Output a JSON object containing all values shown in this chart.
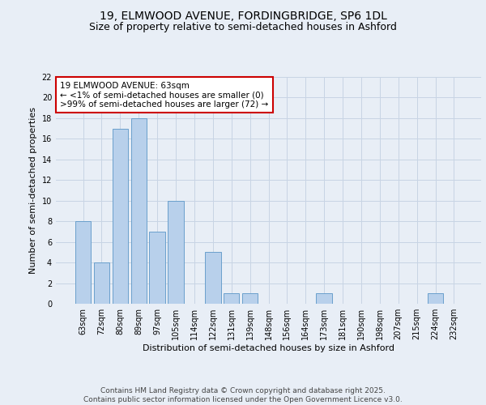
{
  "title1": "19, ELMWOOD AVENUE, FORDINGBRIDGE, SP6 1DL",
  "title2": "Size of property relative to semi-detached houses in Ashford",
  "xlabel": "Distribution of semi-detached houses by size in Ashford",
  "ylabel": "Number of semi-detached properties",
  "categories": [
    "63sqm",
    "72sqm",
    "80sqm",
    "89sqm",
    "97sqm",
    "105sqm",
    "114sqm",
    "122sqm",
    "131sqm",
    "139sqm",
    "148sqm",
    "156sqm",
    "164sqm",
    "173sqm",
    "181sqm",
    "190sqm",
    "198sqm",
    "207sqm",
    "215sqm",
    "224sqm",
    "232sqm"
  ],
  "values": [
    8,
    4,
    17,
    18,
    7,
    10,
    0,
    5,
    1,
    1,
    0,
    0,
    0,
    1,
    0,
    0,
    0,
    0,
    0,
    1,
    0
  ],
  "bar_color": "#b8d0eb",
  "bar_edge_color": "#6aa0cc",
  "annotation_text": "19 ELMWOOD AVENUE: 63sqm\n← <1% of semi-detached houses are smaller (0)\n>99% of semi-detached houses are larger (72) →",
  "annotation_box_facecolor": "#ffffff",
  "annotation_box_edgecolor": "#cc0000",
  "ylim": [
    0,
    22
  ],
  "yticks": [
    0,
    2,
    4,
    6,
    8,
    10,
    12,
    14,
    16,
    18,
    20,
    22
  ],
  "grid_color": "#c8d4e4",
  "background_color": "#e8eef6",
  "footer_text": "Contains HM Land Registry data © Crown copyright and database right 2025.\nContains public sector information licensed under the Open Government Licence v3.0.",
  "title_fontsize": 10,
  "subtitle_fontsize": 9,
  "axis_label_fontsize": 8,
  "tick_fontsize": 7,
  "annotation_fontsize": 7.5,
  "footer_fontsize": 6.5
}
